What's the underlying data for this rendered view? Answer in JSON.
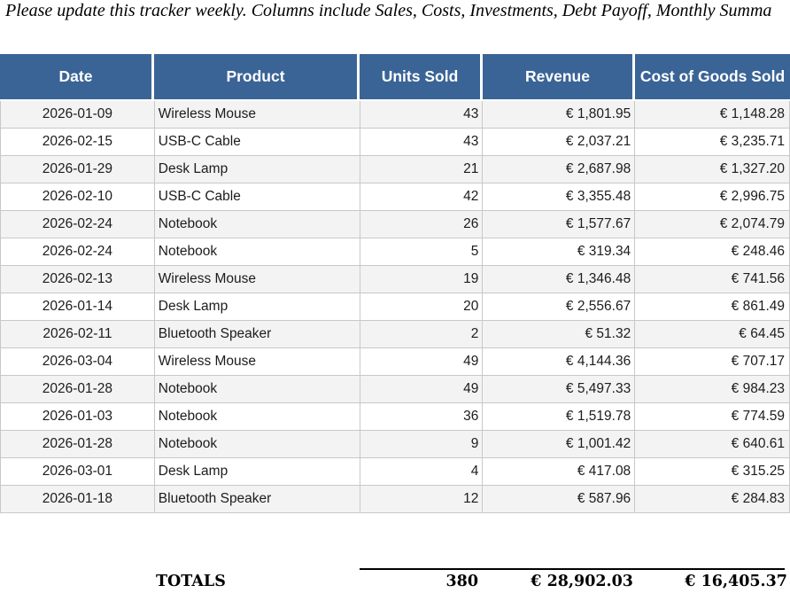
{
  "note": "Please update this tracker weekly. Columns include Sales, Costs, Investments, Debt Payoff, Monthly Summa",
  "table": {
    "columns": [
      "Date",
      "Product",
      "Units Sold",
      "Revenue",
      "Cost of Goods Sold"
    ],
    "rows": [
      {
        "date": "2026-01-09",
        "product": "Wireless Mouse",
        "units": "43",
        "revenue": "€ 1,801.95",
        "cogs": "€ 1,148.28"
      },
      {
        "date": "2026-02-15",
        "product": "USB-C Cable",
        "units": "43",
        "revenue": "€ 2,037.21",
        "cogs": "€ 3,235.71"
      },
      {
        "date": "2026-01-29",
        "product": "Desk Lamp",
        "units": "21",
        "revenue": "€ 2,687.98",
        "cogs": "€ 1,327.20"
      },
      {
        "date": "2026-02-10",
        "product": "USB-C Cable",
        "units": "42",
        "revenue": "€ 3,355.48",
        "cogs": "€ 2,996.75"
      },
      {
        "date": "2026-02-24",
        "product": "Notebook",
        "units": "26",
        "revenue": "€ 1,577.67",
        "cogs": "€ 2,074.79"
      },
      {
        "date": "2026-02-24",
        "product": "Notebook",
        "units": "5",
        "revenue": "€ 319.34",
        "cogs": "€ 248.46"
      },
      {
        "date": "2026-02-13",
        "product": "Wireless Mouse",
        "units": "19",
        "revenue": "€ 1,346.48",
        "cogs": "€ 741.56"
      },
      {
        "date": "2026-01-14",
        "product": "Desk Lamp",
        "units": "20",
        "revenue": "€ 2,556.67",
        "cogs": "€ 861.49"
      },
      {
        "date": "2026-02-11",
        "product": "Bluetooth Speaker",
        "units": "2",
        "revenue": "€ 51.32",
        "cogs": "€ 64.45"
      },
      {
        "date": "2026-03-04",
        "product": "Wireless Mouse",
        "units": "49",
        "revenue": "€ 4,144.36",
        "cogs": "€ 707.17"
      },
      {
        "date": "2026-01-28",
        "product": "Notebook",
        "units": "49",
        "revenue": "€ 5,497.33",
        "cogs": "€ 984.23"
      },
      {
        "date": "2026-01-03",
        "product": "Notebook",
        "units": "36",
        "revenue": "€ 1,519.78",
        "cogs": "€ 774.59"
      },
      {
        "date": "2026-01-28",
        "product": "Notebook",
        "units": "9",
        "revenue": "€ 1,001.42",
        "cogs": "€ 640.61"
      },
      {
        "date": "2026-03-01",
        "product": "Desk Lamp",
        "units": "4",
        "revenue": "€ 417.08",
        "cogs": "€ 315.25"
      },
      {
        "date": "2026-01-18",
        "product": "Bluetooth Speaker",
        "units": "12",
        "revenue": "€ 587.96",
        "cogs": "€ 284.83"
      }
    ],
    "totals": {
      "label": "TOTALS",
      "units": "380",
      "revenue": "€ 28,902.03",
      "cogs": "€ 16,405.37"
    }
  },
  "colors": {
    "header_bg": "#3A6496",
    "header_text": "#FFFFFF",
    "row_alt": "#F3F3F3",
    "row_white": "#FFFFFF",
    "grid": "#C8C8C8",
    "text": "#1C1C1C",
    "totals": "#000000"
  }
}
